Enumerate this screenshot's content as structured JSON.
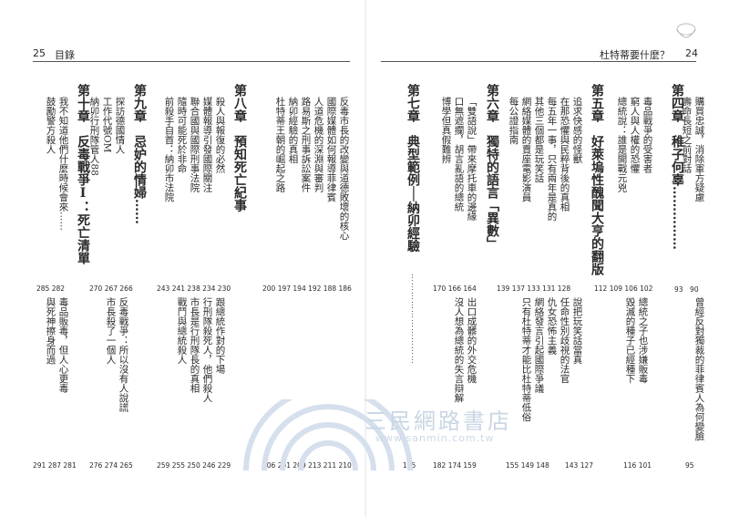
{
  "header": {
    "left_page_number": "25",
    "left_title": "目錄",
    "right_title": "杜特蒂要什麼？",
    "right_page_number": "24"
  },
  "chapters": [
    {
      "heading": "第四章　稚子何辜……………",
      "items": [
        "購買忠誠，消除軍方疑慮",
        "壽命長短之前對話"
      ],
      "top_pages": "93　90",
      "bottom_pages": "95"
    },
    {
      "heading": "",
      "items": [
        "曾經反對獨裁的菲律賓人為何變臉"
      ],
      "top_pages": "",
      "bottom_pages": ""
    },
    {
      "heading": "",
      "items": [
        "毒品戰爭的受害者",
        "窮人與人權的恐懼",
        "總統說：誰是開戰元兇"
      ],
      "top_pages": "112 109 106 102",
      "bottom_pages": "116 101"
    },
    {
      "heading": "",
      "items": [
        "總統之子也涉嫌販毒",
        "毀滅的種子已經種下"
      ],
      "top_pages": "",
      "bottom_pages": ""
    },
    {
      "heading": "第五章　好萊塢性醜聞大亨的翻版",
      "items": [
        "追求快感的怪獸",
        "在那恐懼與民粹背後的真相",
        "每五年一事，只有兩年是真的",
        "其他三個都是玩笑話",
        "網絡媒體的賣座電影演員",
        "每公證指南"
      ],
      "top_pages": "139 137 133 131 128",
      "bottom_pages": "143 127"
    },
    {
      "heading": "",
      "items": [
        "說把玩笑話當真",
        "任命性別歧視的法官",
        "仇女恐怖主義",
        "網絡發言引起國際爭議",
        "只有杜特蒂才能比杜特蒂低俗"
      ],
      "top_pages": "",
      "bottom_pages": "155 149 148"
    },
    {
      "heading": "第六章　獨特的語言「異數」",
      "items": [
        "「雙語說」帶來摩托車的邊緣",
        "口無遮攔，胡言亂語的總統",
        "博學但真假難辨"
      ],
      "top_pages": "170 166 164",
      "bottom_pages": ""
    },
    {
      "heading": "",
      "items": [
        "出口成髒的外交危機",
        "沒人想為總統的失言辯解"
      ],
      "top_pages": "",
      "bottom_pages": "182 174 159"
    },
    {
      "heading": "第七章　典型範例──納卯經驗",
      "items": [],
      "top_pages": "",
      "bottom_pages": "185"
    },
    {
      "heading": "",
      "items": [
        "反毒市長的改變與道德敗壞的核心",
        "國際媒體如何報導菲律賓",
        "人道危機的深淵與審判",
        "路易斯之刑事訴訟案件",
        "納卯經驗的真相",
        "杜特蒂王朝的崛起之路"
      ],
      "top_pages": "200 197 194 192 188 186",
      "bottom_pages": "206 201 209 213 211 210"
    },
    {
      "heading": "第八章　預知死亡紀事",
      "items": [
        "殺人與報復的必然",
        "媒體報導引發國際關注",
        "聯合國與國際刑事法院",
        "隨時可能死於非命",
        "前殺手自首：納卯市法院"
      ],
      "top_pages": "243 241 238 234 230",
      "bottom_pages": "259 255 250 246 229"
    },
    {
      "heading": "",
      "items": [
        "跟總統作對的下場",
        "行刑隊殺死人，他們殺人",
        "市長是行刑隊長的真相",
        "戰鬥與總統殺人"
      ],
      "top_pages": "",
      "bottom_pages": ""
    },
    {
      "heading": "第九章　忌妒的情婦……",
      "items": [
        "探訪德國情人",
        "工作代號OM",
        "納卯行刑隊管人88"
      ],
      "top_pages": "270 267 266",
      "bottom_pages": "276 274 265"
    },
    {
      "heading": "",
      "items": [
        "反毒戰爭：所以沒有人說謊",
        "市長殺了一個人"
      ],
      "top_pages": "",
      "bottom_pages": ""
    },
    {
      "heading": "第十章　反毒戰爭Ⅰ：死亡清單",
      "items": [
        "我不知道他們什麼時候會來……",
        "鼓勵警方殺人"
      ],
      "top_pages": "285 282",
      "bottom_pages": "291 287 281"
    },
    {
      "heading": "",
      "items": [
        "毒品販毒，但人心更毒",
        "與死神擦身而過"
      ],
      "top_pages": "",
      "bottom_pages": ""
    }
  ],
  "watermark": {
    "name": "三民網路書店",
    "url": "www.sanmin.com.tw",
    "color": "#c9d6e4"
  }
}
